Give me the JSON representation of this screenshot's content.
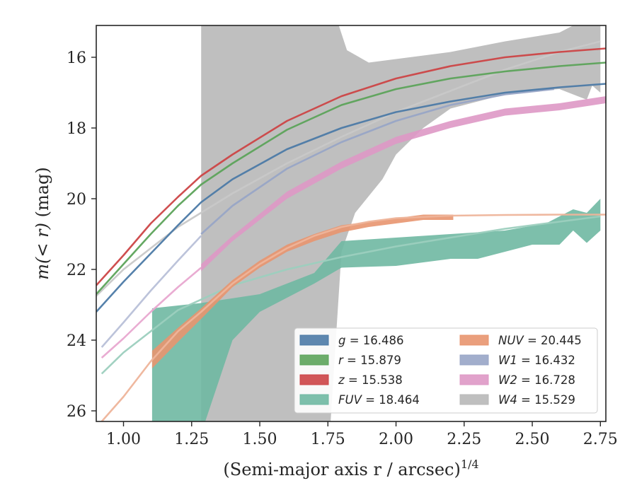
{
  "chart_data": {
    "type": "line",
    "xlabel": "(Semi-major axis r / arcsec)",
    "xlabel_sup": "1/4",
    "ylabel_main": "m(< r)",
    "ylabel_unit": " (mag)",
    "xlim": [
      0.9,
      2.77
    ],
    "ylim": [
      26.3,
      15.1
    ],
    "y_inverted": true,
    "xticks": [
      "1.00",
      "1.25",
      "1.50",
      "1.75",
      "2.00",
      "2.25",
      "2.50",
      "2.75"
    ],
    "xtick_values": [
      1.0,
      1.25,
      1.5,
      1.75,
      2.0,
      2.25,
      2.5,
      2.75
    ],
    "yticks": [
      "16",
      "18",
      "20",
      "22",
      "24",
      "26"
    ],
    "ytick_values": [
      16,
      18,
      20,
      22,
      24,
      26
    ],
    "grid": false,
    "legend_position": "lower-right",
    "legend": [
      {
        "band": "g",
        "value": "16.486",
        "color": "#4c7aa6"
      },
      {
        "band": "NUV",
        "value": "20.445",
        "color": "#e8956f"
      },
      {
        "band": "r",
        "value": "15.879",
        "color": "#5ca35a"
      },
      {
        "band": "W1",
        "value": "16.432",
        "color": "#98a5c6"
      },
      {
        "band": "z",
        "value": "15.538",
        "color": "#cc4446"
      },
      {
        "band": "W2",
        "value": "16.728",
        "color": "#de98c5"
      },
      {
        "band": "FUV",
        "value": "18.464",
        "color": "#6fb8a2"
      },
      {
        "band": "W4",
        "value": "15.529",
        "color": "#b8b8b8"
      }
    ],
    "series": [
      {
        "band": "W4",
        "color": "#b8b8b8",
        "kind": "band",
        "upper": [
          [
            1.285,
            15.1
          ],
          [
            1.79,
            15.1
          ],
          [
            1.82,
            15.8
          ],
          [
            1.9,
            16.15
          ],
          [
            2.0,
            16.05
          ],
          [
            2.2,
            15.85
          ],
          [
            2.4,
            15.55
          ],
          [
            2.6,
            15.3
          ],
          [
            2.65,
            15.1
          ],
          [
            2.75,
            15.1
          ]
        ],
        "lower": [
          [
            2.75,
            17.0
          ],
          [
            2.72,
            16.8
          ],
          [
            2.7,
            17.2
          ],
          [
            2.6,
            16.9
          ],
          [
            2.5,
            16.95
          ],
          [
            2.4,
            17.05
          ],
          [
            2.2,
            17.45
          ],
          [
            2.1,
            18.0
          ],
          [
            2.0,
            18.75
          ],
          [
            1.95,
            19.45
          ],
          [
            1.85,
            20.4
          ],
          [
            1.8,
            21.5
          ],
          [
            1.76,
            26.3
          ],
          [
            1.3,
            26.3
          ],
          [
            1.285,
            26.3
          ]
        ]
      },
      {
        "band": "W4",
        "color": "#c8c8c8",
        "kind": "line",
        "x": [
          0.9,
          1.0,
          1.2,
          1.4,
          1.6,
          1.8,
          2.0,
          2.2,
          2.4,
          2.6,
          2.75
        ],
        "y": [
          22.75,
          22.0,
          20.8,
          19.85,
          19.0,
          18.25,
          17.55,
          16.95,
          16.35,
          15.85,
          15.55
        ]
      },
      {
        "band": "FUV",
        "color": "#6fb8a2",
        "kind": "band",
        "upper": [
          [
            1.105,
            23.1
          ],
          [
            1.285,
            22.95
          ],
          [
            1.5,
            22.7
          ],
          [
            1.7,
            22.1
          ],
          [
            1.8,
            21.2
          ],
          [
            2.0,
            21.1
          ],
          [
            2.2,
            21.0
          ],
          [
            2.4,
            20.9
          ],
          [
            2.55,
            20.7
          ],
          [
            2.65,
            20.3
          ],
          [
            2.7,
            20.4
          ],
          [
            2.75,
            20.0
          ]
        ],
        "lower": [
          [
            2.75,
            20.9
          ],
          [
            2.7,
            21.25
          ],
          [
            2.65,
            20.9
          ],
          [
            2.6,
            21.3
          ],
          [
            2.5,
            21.3
          ],
          [
            2.4,
            21.5
          ],
          [
            2.3,
            21.7
          ],
          [
            2.2,
            21.7
          ],
          [
            2.0,
            21.9
          ],
          [
            1.8,
            21.95
          ],
          [
            1.7,
            22.4
          ],
          [
            1.5,
            23.2
          ],
          [
            1.4,
            24.0
          ],
          [
            1.3,
            26.3
          ],
          [
            1.105,
            26.3
          ]
        ]
      },
      {
        "band": "FUV",
        "color": "#9ccfbe",
        "kind": "line",
        "x": [
          0.92,
          1.0,
          1.2,
          1.4,
          1.6,
          1.8,
          2.0,
          2.2,
          2.4,
          2.6,
          2.75
        ],
        "y": [
          24.95,
          24.35,
          23.15,
          22.45,
          22.0,
          21.65,
          21.35,
          21.1,
          20.85,
          20.65,
          20.5
        ]
      },
      {
        "band": "NUV",
        "color": "#e8956f",
        "kind": "band",
        "upper": [
          [
            1.105,
            24.3
          ],
          [
            1.2,
            23.65
          ],
          [
            1.285,
            23.1
          ],
          [
            1.4,
            22.3
          ],
          [
            1.5,
            21.75
          ],
          [
            1.6,
            21.3
          ],
          [
            1.7,
            21.0
          ],
          [
            1.8,
            20.75
          ],
          [
            1.9,
            20.65
          ],
          [
            2.0,
            20.55
          ],
          [
            2.1,
            20.45
          ],
          [
            2.21,
            20.45
          ]
        ],
        "lower": [
          [
            2.21,
            20.6
          ],
          [
            2.1,
            20.6
          ],
          [
            2.0,
            20.7
          ],
          [
            1.9,
            20.8
          ],
          [
            1.8,
            20.95
          ],
          [
            1.7,
            21.2
          ],
          [
            1.6,
            21.5
          ],
          [
            1.5,
            21.95
          ],
          [
            1.4,
            22.5
          ],
          [
            1.285,
            23.4
          ],
          [
            1.2,
            24.05
          ],
          [
            1.105,
            24.8
          ]
        ]
      },
      {
        "band": "NUV",
        "color": "#eeb49a",
        "kind": "line",
        "x": [
          0.92,
          1.0,
          1.1,
          1.2,
          1.285,
          1.4,
          1.5,
          1.6,
          1.7,
          1.8,
          1.9,
          2.0,
          2.2,
          2.4,
          2.6,
          2.77
        ],
        "y": [
          26.3,
          25.6,
          24.6,
          23.75,
          23.2,
          22.4,
          21.85,
          21.4,
          21.05,
          20.8,
          20.65,
          20.55,
          20.48,
          20.46,
          20.45,
          20.45
        ]
      },
      {
        "band": "W2",
        "color": "#e8a8d0",
        "kind": "line",
        "x": [
          0.92,
          1.0,
          1.1,
          1.2,
          1.285
        ],
        "y": [
          24.5,
          23.95,
          23.2,
          22.5,
          21.95
        ]
      },
      {
        "band": "W2",
        "color": "#de98c5",
        "kind": "band",
        "upper": [
          [
            1.285,
            21.85
          ],
          [
            1.4,
            21.05
          ],
          [
            1.6,
            19.8
          ],
          [
            1.8,
            18.95
          ],
          [
            2.0,
            18.25
          ],
          [
            2.2,
            17.8
          ],
          [
            2.4,
            17.45
          ],
          [
            2.6,
            17.3
          ],
          [
            2.77,
            17.1
          ]
        ],
        "lower": [
          [
            2.77,
            17.3
          ],
          [
            2.6,
            17.5
          ],
          [
            2.4,
            17.65
          ],
          [
            2.2,
            18.0
          ],
          [
            2.0,
            18.45
          ],
          [
            1.8,
            19.15
          ],
          [
            1.6,
            20.0
          ],
          [
            1.4,
            21.2
          ],
          [
            1.285,
            22.05
          ]
        ]
      },
      {
        "band": "W1",
        "color": "#b8c0d8",
        "kind": "line",
        "x": [
          0.92,
          1.0,
          1.1,
          1.2,
          1.285
        ],
        "y": [
          24.2,
          23.5,
          22.6,
          21.75,
          21.05
        ]
      },
      {
        "band": "W1",
        "color": "#98a5c6",
        "kind": "line",
        "x": [
          1.285,
          1.4,
          1.6,
          1.8,
          2.0,
          2.2,
          2.4,
          2.58
        ],
        "y": [
          21.0,
          20.2,
          19.15,
          18.4,
          17.8,
          17.35,
          17.05,
          16.9
        ]
      },
      {
        "band": "g",
        "color": "#4c7aa6",
        "kind": "line",
        "x": [
          0.9,
          1.0,
          1.1,
          1.2,
          1.285,
          1.4,
          1.6,
          1.8,
          2.0,
          2.2,
          2.4,
          2.6,
          2.77
        ],
        "y": [
          23.2,
          22.35,
          21.55,
          20.75,
          20.1,
          19.45,
          18.6,
          18.0,
          17.55,
          17.25,
          17.0,
          16.85,
          16.75
        ]
      },
      {
        "band": "r",
        "color": "#5ca35a",
        "kind": "line",
        "x": [
          0.9,
          1.0,
          1.1,
          1.2,
          1.285,
          1.4,
          1.6,
          1.8,
          2.0,
          2.2,
          2.4,
          2.6,
          2.77
        ],
        "y": [
          22.7,
          21.85,
          21.0,
          20.2,
          19.6,
          19.0,
          18.05,
          17.35,
          16.9,
          16.6,
          16.4,
          16.25,
          16.15
        ]
      },
      {
        "band": "z",
        "color": "#cc4446",
        "kind": "line",
        "x": [
          0.9,
          1.0,
          1.1,
          1.2,
          1.285,
          1.4,
          1.6,
          1.8,
          2.0,
          2.2,
          2.4,
          2.6,
          2.77
        ],
        "y": [
          22.45,
          21.6,
          20.7,
          19.95,
          19.35,
          18.75,
          17.8,
          17.1,
          16.6,
          16.25,
          16.0,
          15.85,
          15.75
        ]
      }
    ]
  }
}
